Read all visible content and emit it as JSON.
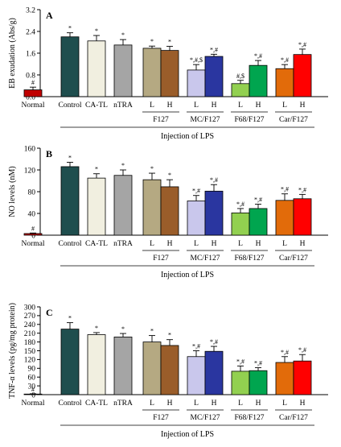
{
  "chart_data": [
    {
      "type": "bar",
      "panel_label": "A",
      "ylabel": "EB exudation (Abs/g)",
      "xlabel": "Injection of LPS",
      "ylim": [
        0,
        3.2
      ],
      "yticks": [
        "0.0",
        "0.8",
        "1.6",
        "2.4",
        "3.2"
      ],
      "bar_labels": [
        "Normal",
        "Control",
        "CA-TL",
        "nTRA",
        "L",
        "H",
        "L",
        "H",
        "L",
        "H",
        "L",
        "H"
      ],
      "group_labels": [
        "F127",
        "MC/F127",
        "F68/F127",
        "Car/F127"
      ],
      "values": [
        0.25,
        2.2,
        2.05,
        1.9,
        1.78,
        1.7,
        0.98,
        1.48,
        0.48,
        1.15,
        1.03,
        1.55
      ],
      "errors": [
        0.1,
        0.15,
        0.2,
        0.2,
        0.08,
        0.15,
        0.2,
        0.08,
        0.12,
        0.18,
        0.15,
        0.2
      ],
      "markers": [
        "#",
        "*",
        "*",
        "*",
        "*",
        "*",
        "*,#,$",
        "*,#",
        "#,$",
        "*,#",
        "*,#",
        "*,#"
      ],
      "colors": [
        "#c00000",
        "#1f4e4e",
        "#f1efe0",
        "#a5a5a5",
        "#b5a982",
        "#9a5d2a",
        "#c9c7ec",
        "#2a36a0",
        "#92d050",
        "#00a54f",
        "#e26b0a",
        "#ff0000"
      ],
      "grid": false
    },
    {
      "type": "bar",
      "panel_label": "B",
      "ylabel": "NO levels (nM)",
      "xlabel": "Injection of LPS",
      "ylim": [
        0,
        160
      ],
      "yticks": [
        "0",
        "40",
        "80",
        "120",
        "160"
      ],
      "bar_labels": [
        "Normal",
        "Control",
        "CA-TL",
        "nTRA",
        "L",
        "H",
        "L",
        "H",
        "L",
        "H",
        "L",
        "H"
      ],
      "group_labels": [
        "F127",
        "MC/F127",
        "F68/F127",
        "Car/F127"
      ],
      "values": [
        3,
        126,
        105,
        110,
        102,
        89,
        63,
        81,
        41,
        49,
        64,
        67
      ],
      "errors": [
        1,
        8,
        8,
        10,
        12,
        13,
        10,
        12,
        8,
        8,
        12,
        8
      ],
      "markers": [
        "#",
        "*",
        "*",
        "*",
        "*",
        "*",
        "*,#",
        "*,#",
        "*,#",
        "*,#",
        "*,#",
        "*,#"
      ],
      "colors": [
        "#c00000",
        "#1f4e4e",
        "#f1efe0",
        "#a5a5a5",
        "#b5a982",
        "#9a5d2a",
        "#c9c7ec",
        "#2a36a0",
        "#92d050",
        "#00a54f",
        "#e26b0a",
        "#ff0000"
      ],
      "grid": false
    },
    {
      "type": "bar",
      "panel_label": "C",
      "ylabel": "TNF-α levels (pg/mg protein)",
      "xlabel": "Injection of LPS",
      "ylim": [
        0,
        300
      ],
      "yticks": [
        "0",
        "30",
        "60",
        "90",
        "120",
        "150",
        "180",
        "210",
        "240",
        "270",
        "300"
      ],
      "bar_labels": [
        "Normal",
        "Control",
        "CA-TL",
        "nTRA",
        "L",
        "H",
        "L",
        "H",
        "L",
        "H",
        "L",
        "H"
      ],
      "group_labels": [
        "F127",
        "MC/F127",
        "F68/F127",
        "Car/F127"
      ],
      "values": [
        2,
        224,
        205,
        197,
        180,
        168,
        130,
        148,
        80,
        82,
        110,
        115
      ],
      "errors": [
        1,
        22,
        7,
        12,
        22,
        20,
        20,
        17,
        18,
        10,
        20,
        22
      ],
      "markers": [
        "#",
        "*",
        "*",
        "*",
        "*",
        "*",
        "*,#",
        "*,#",
        "*,#",
        "*,#",
        "*,#",
        "*,#"
      ],
      "colors": [
        "#c00000",
        "#1f4e4e",
        "#f1efe0",
        "#a5a5a5",
        "#b5a982",
        "#9a5d2a",
        "#c9c7ec",
        "#2a36a0",
        "#92d050",
        "#00a54f",
        "#e26b0a",
        "#ff0000"
      ],
      "grid": false
    }
  ]
}
